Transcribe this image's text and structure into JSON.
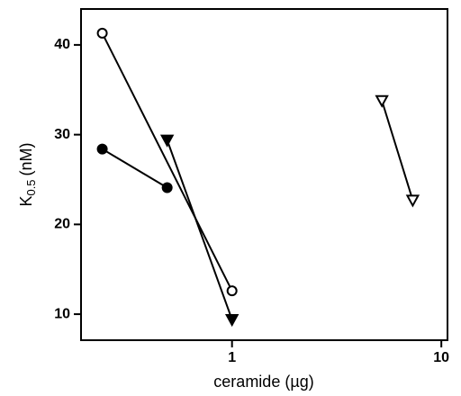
{
  "chart_data": {
    "type": "line",
    "ylabel": {
      "main": "K",
      "sub": "0.5",
      "unit": "(nM)"
    },
    "xlabel": "ceramide (µg)",
    "xscale": "log",
    "xlim": [
      0.19,
      10.7
    ],
    "xticks": [
      1,
      10
    ],
    "ylim": [
      7.1,
      44
    ],
    "yticks": [
      10,
      20,
      30,
      40
    ],
    "color": "#000000",
    "series": [
      {
        "marker": "circle",
        "filled": false,
        "x": [
          0.24,
          1
        ],
        "values": [
          41.3,
          12.6
        ]
      },
      {
        "marker": "circle",
        "filled": true,
        "x": [
          0.24,
          0.49
        ],
        "values": [
          28.4,
          24.1
        ]
      },
      {
        "marker": "triangle-down",
        "filled": true,
        "x": [
          0.49,
          1
        ],
        "values": [
          29.4,
          9.4
        ]
      },
      {
        "marker": "triangle-down",
        "filled": false,
        "x": [
          5.2,
          7.3
        ],
        "values": [
          33.8,
          22.7
        ]
      }
    ]
  }
}
